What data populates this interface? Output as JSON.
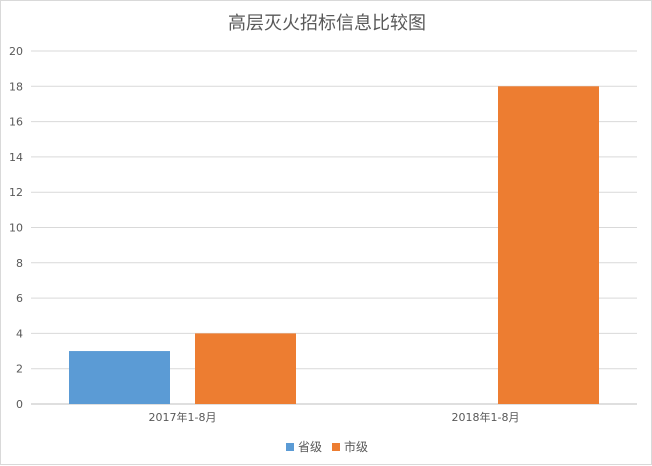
{
  "chart_data": {
    "type": "bar",
    "title": "高层灭火招标信息比较图",
    "categories": [
      "2017年1-8月",
      "2018年1-8月"
    ],
    "series": [
      {
        "name": "省级",
        "values": [
          3,
          0
        ],
        "color": "#5B9BD5"
      },
      {
        "name": "市级",
        "values": [
          4,
          18
        ],
        "color": "#ED7D31"
      }
    ],
    "ylim": [
      0,
      20
    ],
    "yticks": [
      0,
      2,
      4,
      6,
      8,
      10,
      12,
      14,
      16,
      18,
      20
    ],
    "grid": true,
    "legend_position": "bottom"
  }
}
